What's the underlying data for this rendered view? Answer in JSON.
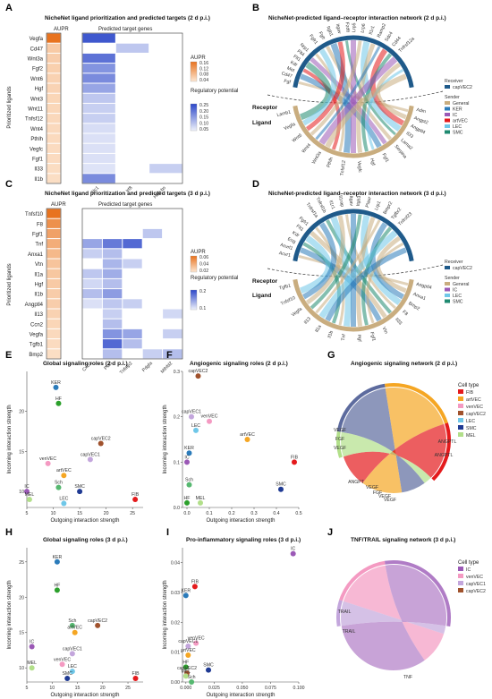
{
  "panels": {
    "A": {
      "letter": "A",
      "title": "NicheNet ligand prioritization and predicted targets (2 d p.i.)",
      "aupr_header": "AUPR",
      "targets_header": "Predicted target genes",
      "ylabel": "Prioritized ligands",
      "ligands": [
        "Vegfa",
        "Cd47",
        "Wnt3a",
        "Fgf2",
        "Wnt6",
        "Hgf",
        "Wnt3",
        "Wnt11",
        "Tnfsf12",
        "Wnt4",
        "Pthlh",
        "Vegfc",
        "Fgf1",
        "Il33",
        "Il1b"
      ],
      "targets": [
        "Slc1",
        "Irf8",
        "Hbb-bs"
      ],
      "legend_aupr_title": "AUPR",
      "legend_aupr_ticks": [
        "0.16",
        "0.12",
        "0.08",
        "0.04"
      ],
      "legend_reg_title": "Regulatory potential",
      "legend_reg_ticks": [
        "0.25",
        "0.20",
        "0.15",
        "0.10",
        "0.05"
      ]
    },
    "B": {
      "letter": "B",
      "title": "NicheNet-predicted ligand–receptor interaction network (2 d p.i.)",
      "receptor_label": "Receptor",
      "ligand_label": "Ligand",
      "receiver_title": "Receiver",
      "receiver": "capVEC2",
      "sender_title": "Sender",
      "senders": [
        "General",
        "KER",
        "IC",
        "artVEC",
        "LEC",
        "SMC"
      ],
      "top_labels": [
        "Fgfr1",
        "Fgfr",
        "Itgb1",
        "Itgav",
        "Fzd6",
        "Lrp5",
        "Lrp6",
        "Il1r1",
        "Ramp2",
        "Sdc4",
        "Cd44",
        "Tnfrsf12a"
      ],
      "left_labels": [
        "Fgf",
        "Cd47",
        "Met",
        "Kdr",
        "Flt1",
        "Flt4",
        "Nrp1"
      ],
      "right_labels": [
        "Adm",
        "Angpt2",
        "Angptl4",
        "Il33",
        "Lama2",
        "Serpina"
      ],
      "bottom_labels": [
        "Fgf1",
        "Hgf",
        "Vegfc",
        "Tnfsf12",
        "Pthlh",
        "Wnt3a",
        "Wnt4",
        "Wnt6",
        "Vegfa",
        "Lamb1"
      ]
    },
    "C": {
      "letter": "C",
      "title": "NicheNet ligand prioritization and predicted targets (3 d p.i.)",
      "aupr_header": "AUPR",
      "targets_header": "Predicted target genes",
      "ylabel": "Prioritized ligands",
      "ligands": [
        "Tnfsf10",
        "F8",
        "Fgf1",
        "Tnf",
        "Anxa1",
        "Vtn",
        "Il1a",
        "Hgf",
        "Il1b",
        "Angptl4",
        "Il13",
        "Ccn2",
        "Vegfa",
        "Tgfb1",
        "Bmp2"
      ],
      "targets": [
        "Cxcl1",
        "Plau",
        "Tnfaip2",
        "Pdgfa",
        "Mthfd2"
      ],
      "legend_aupr_title": "AUPR",
      "legend_aupr_ticks": [
        "0.06",
        "0.04",
        "0.02"
      ],
      "legend_reg_title": "Regulatory potential",
      "legend_reg_ticks": [
        "0.2",
        "0.1"
      ]
    },
    "D": {
      "letter": "D",
      "title": "NicheNet-predicted ligand–receptor interaction network (3 d p.i.)",
      "receptor_label": "Receptor",
      "ligand_label": "Ligand",
      "receiver_title": "Receiver",
      "receiver": "capVEC2",
      "sender_title": "Sender",
      "senders": [
        "General",
        "IC",
        "LEC",
        "SMC"
      ],
      "top_labels": [
        "Tnfrsf1a",
        "Tnfrsf1b",
        "Il1r1",
        "Il1rap",
        "Itgav",
        "Itgb3",
        "Plaur",
        "Lrp1",
        "Bmpr2",
        "Tgfbr2",
        "Tnfrsf23"
      ],
      "left_labels": [
        "Acvr1",
        "Acvrl1",
        "Eng",
        "Kdr",
        "Flt1",
        "Fgfr1"
      ],
      "right_labels": [
        "Angptl4",
        "Anxa1",
        "Bmp2",
        "F8",
        "Il33"
      ],
      "bottom_labels": [
        "Vtn",
        "Fgf1",
        "Hgf",
        "Tnf",
        "Il1b",
        "Il1a",
        "Il13",
        "Vegfa",
        "Tnfsf10",
        "Tgfb1"
      ]
    },
    "E": {
      "letter": "E",
      "title": "Global signaling roles (2 d p.i.)",
      "xlabel": "Outgoing interaction strength",
      "ylabel": "Incoming interaction strength"
    },
    "F": {
      "letter": "F",
      "title": "Angiogenic signaling roles (2 d p.i.)",
      "xlabel": "Outgoing interaction strength",
      "ylabel": "Incoming interaction strength"
    },
    "G": {
      "letter": "G",
      "title": "Angiogenic signaling network (2 d p.i.)",
      "legend_title": "Cell type",
      "legend": [
        "FIB",
        "artVEC",
        "venVEC",
        "capVEC2",
        "LEC",
        "SMC",
        "MEL"
      ],
      "chord_labels": [
        "VEGF",
        "FGF",
        "VEGF",
        "ANGPT",
        "ANGPTL",
        "VEGF",
        "FGF",
        "ANGPTL",
        "VEGF",
        "VEGF"
      ]
    },
    "H": {
      "letter": "H",
      "title": "Global signaling roles (3 d p.i.)",
      "xlabel": "Outgoing interaction strength",
      "ylabel": "Incoming interaction strength"
    },
    "I": {
      "letter": "I",
      "title": "Pro-inflammatory signaling roles (3 d p.i.)",
      "xlabel": "Outgoing interaction strength",
      "ylabel": "Incoming interaction strength"
    },
    "J": {
      "letter": "J",
      "title": "TNF/TRAIL signaling network (3 d p.i.)",
      "legend_title": "Cell type",
      "legend": [
        "IC",
        "venVEC",
        "capVEC1",
        "capVEC2"
      ],
      "chord_labels": [
        "TRAIL",
        "TRAIL",
        "TNF"
      ]
    }
  },
  "colors": {
    "FIB": "#e41a1c",
    "artVEC": "#f5a623",
    "venVEC": "#f49ac2",
    "capVEC1": "#c3a6dc",
    "capVEC2": "#a0522d",
    "LEC": "#6fc7e8",
    "SMC": "#1f3a93",
    "KER": "#2b7bba",
    "HF": "#2ca02c",
    "Sch": "#56b870",
    "IC": "#9b59b6",
    "MEL": "#b2df8a"
  },
  "chart_data": [
    {
      "panel": "E",
      "type": "scatter",
      "xlim": [
        5,
        27
      ],
      "ylim": [
        8,
        25
      ],
      "xticks": [
        "5",
        "10",
        "15",
        "20",
        "25"
      ],
      "yticks": [
        "10",
        "15",
        "20"
      ],
      "points": [
        {
          "label": "KER",
          "x": 10.5,
          "y": 23
        },
        {
          "label": "HF",
          "x": 11,
          "y": 21
        },
        {
          "label": "capVEC2",
          "x": 19,
          "y": 16
        },
        {
          "label": "capVEC1",
          "x": 17,
          "y": 14
        },
        {
          "label": "venVEC",
          "x": 9,
          "y": 13.5
        },
        {
          "label": "artVEC",
          "x": 12,
          "y": 12
        },
        {
          "label": "Sch",
          "x": 11,
          "y": 10.5
        },
        {
          "label": "SMC",
          "x": 15,
          "y": 10
        },
        {
          "label": "IC",
          "x": 5,
          "y": 10
        },
        {
          "label": "MEL",
          "x": 5.5,
          "y": 9
        },
        {
          "label": "LEC",
          "x": 12,
          "y": 8.5
        },
        {
          "label": "FIB",
          "x": 25.5,
          "y": 9
        }
      ]
    },
    {
      "panel": "F",
      "type": "scatter",
      "xlim": [
        -0.02,
        0.5
      ],
      "ylim": [
        0,
        0.3
      ],
      "xticks": [
        "0.0",
        "0.1",
        "0.2",
        "0.3",
        "0.4",
        "0.5"
      ],
      "yticks": [
        "0.0",
        "0.1",
        "0.2",
        "0.3"
      ],
      "points": [
        {
          "label": "capVEC2",
          "x": 0.05,
          "y": 0.29
        },
        {
          "label": "capVEC1",
          "x": 0.02,
          "y": 0.2
        },
        {
          "label": "venVEC",
          "x": 0.1,
          "y": 0.19
        },
        {
          "label": "LEC",
          "x": 0.04,
          "y": 0.17
        },
        {
          "label": "artVEC",
          "x": 0.27,
          "y": 0.15
        },
        {
          "label": "KER",
          "x": 0.01,
          "y": 0.12
        },
        {
          "label": "IC",
          "x": 0.0,
          "y": 0.1
        },
        {
          "label": "FIB",
          "x": 0.48,
          "y": 0.1
        },
        {
          "label": "Sch",
          "x": 0.01,
          "y": 0.05
        },
        {
          "label": "SMC",
          "x": 0.42,
          "y": 0.04
        },
        {
          "label": "HF",
          "x": 0.0,
          "y": 0.01
        },
        {
          "label": "MEL",
          "x": 0.06,
          "y": 0.01
        }
      ]
    },
    {
      "panel": "H",
      "type": "scatter",
      "xlim": [
        5,
        28
      ],
      "ylim": [
        8,
        27
      ],
      "xticks": [
        "5",
        "10",
        "15",
        "20",
        "25"
      ],
      "yticks": [
        "10",
        "15",
        "20",
        "25"
      ],
      "points": [
        {
          "label": "KER",
          "x": 11,
          "y": 25
        },
        {
          "label": "HF",
          "x": 11,
          "y": 21
        },
        {
          "label": "Sch",
          "x": 14,
          "y": 16
        },
        {
          "label": "artVEC",
          "x": 14.5,
          "y": 15
        },
        {
          "label": "capVEC2",
          "x": 19,
          "y": 16
        },
        {
          "label": "IC",
          "x": 6,
          "y": 13
        },
        {
          "label": "capVEC1",
          "x": 14,
          "y": 12
        },
        {
          "label": "venVEC",
          "x": 12,
          "y": 10.5
        },
        {
          "label": "MEL",
          "x": 6,
          "y": 10
        },
        {
          "label": "LEC",
          "x": 14,
          "y": 9.5
        },
        {
          "label": "SMC",
          "x": 13,
          "y": 8.5
        },
        {
          "label": "FIB",
          "x": 26.5,
          "y": 8.5
        }
      ]
    },
    {
      "panel": "I",
      "type": "scatter",
      "xlim": [
        -0.003,
        0.1
      ],
      "ylim": [
        0,
        0.045
      ],
      "xticks": [
        "0.000",
        "0.025",
        "0.050",
        "0.075",
        "0.100"
      ],
      "yticks": [
        "0.00",
        "0.01",
        "0.02",
        "0.03",
        "0.04"
      ],
      "points": [
        {
          "label": "IC",
          "x": 0.095,
          "y": 0.043
        },
        {
          "label": "FIB",
          "x": 0.008,
          "y": 0.032
        },
        {
          "label": "KER",
          "x": 0.0,
          "y": 0.029
        },
        {
          "label": "venVEC",
          "x": 0.009,
          "y": 0.013
        },
        {
          "label": "capVEC1",
          "x": 0.002,
          "y": 0.012
        },
        {
          "label": "artVEC",
          "x": 0.002,
          "y": 0.009
        },
        {
          "label": "HF",
          "x": 0.0,
          "y": 0.005
        },
        {
          "label": "SMC",
          "x": 0.02,
          "y": 0.004
        },
        {
          "label": "capVEC2",
          "x": 0.001,
          "y": 0.003
        },
        {
          "label": "MEL",
          "x": 0.0,
          "y": 0.002
        },
        {
          "label": "Sch",
          "x": 0.005,
          "y": 0.0
        }
      ]
    }
  ]
}
